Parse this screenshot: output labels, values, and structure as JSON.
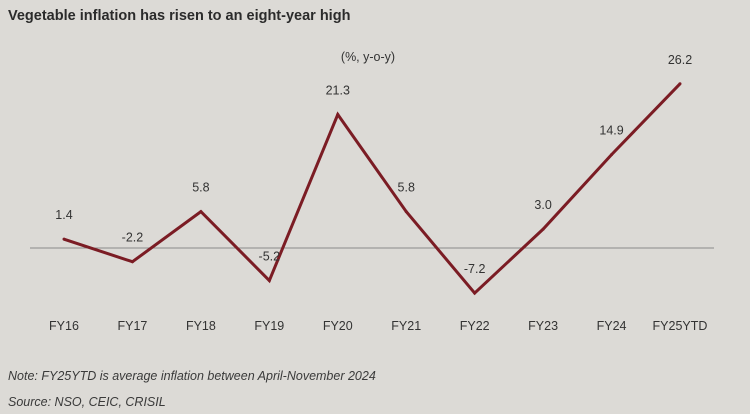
{
  "title": "Vegetable inflation has risen to an eight-year high",
  "note": "Note: FY25YTD is average inflation between April-November 2024",
  "source": "Source: NSO, CEIC, CRISIL",
  "chart_data": {
    "type": "line",
    "unit_label": "(%, y-o-y)",
    "categories": [
      "FY16",
      "FY17",
      "FY18",
      "FY19",
      "FY20",
      "FY21",
      "FY22",
      "FY23",
      "FY24",
      "FY25YTD"
    ],
    "series": [
      {
        "values": [
          1.4,
          -2.2,
          5.8,
          -5.2,
          21.3,
          5.8,
          -7.2,
          3.0,
          14.9,
          26.2
        ],
        "labels": [
          "1.4",
          "-2.2",
          "5.8",
          "-5.2",
          "21.3",
          "5.8",
          "-7.2",
          "3.0",
          "14.9",
          "26.2"
        ],
        "color": "#7b1c24"
      }
    ],
    "ylim": [
      -11.5,
      30
    ],
    "grid": false,
    "zero_line": true,
    "legend": "none"
  }
}
